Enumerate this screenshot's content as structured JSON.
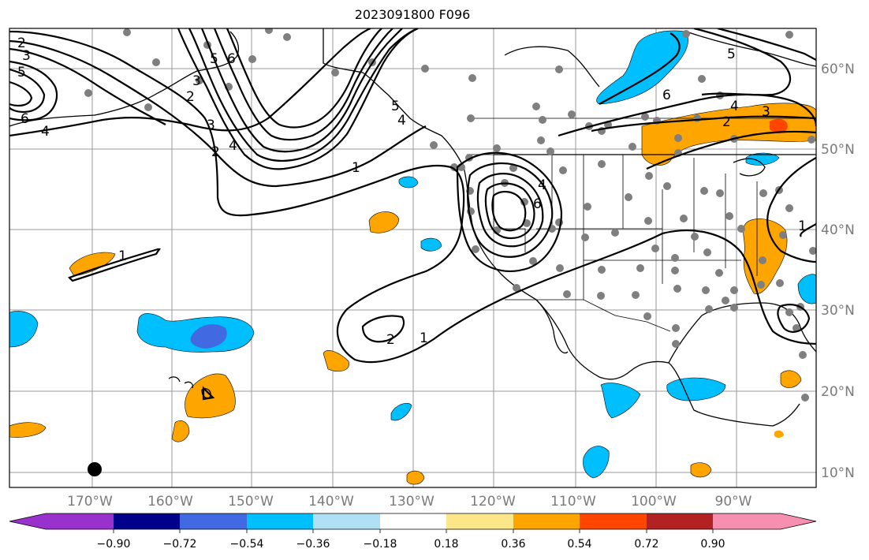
{
  "title": "2023091800 F096",
  "lon_labels": [
    "170°W",
    "160°W",
    "150°W",
    "140°W",
    "130°W",
    "120°W",
    "110°W",
    "100°W",
    "90°W"
  ],
  "lat_labels": [
    "60°N",
    "50°N",
    "40°N",
    "30°N",
    "20°N",
    "10°N"
  ],
  "colorbar": {
    "ticks": [
      "−0.90",
      "−0.72",
      "−0.54",
      "−0.36",
      "−0.18",
      "0.18",
      "0.36",
      "0.54",
      "0.72",
      "0.90"
    ],
    "colors": [
      "#9932cc",
      "#00008b",
      "#4169e1",
      "#00bfff",
      "#b0e0f6",
      "#ffffff",
      "#fbe68a",
      "#ffa500",
      "#ff4500",
      "#b22222",
      "#f78fb0"
    ]
  },
  "contour_labels": [
    "2",
    "3",
    "5",
    "6",
    "4",
    "5",
    "3",
    "2",
    "4",
    "6",
    "5",
    "4",
    "3",
    "2",
    "1",
    "1",
    "2",
    "1",
    "4",
    "6",
    "6",
    "5",
    "4",
    "3",
    "2",
    "1"
  ],
  "fill_colors": {
    "blue": "#00bfff",
    "darkblue": "#4169e1",
    "orange": "#ffa500",
    "red": "#ff4500"
  }
}
